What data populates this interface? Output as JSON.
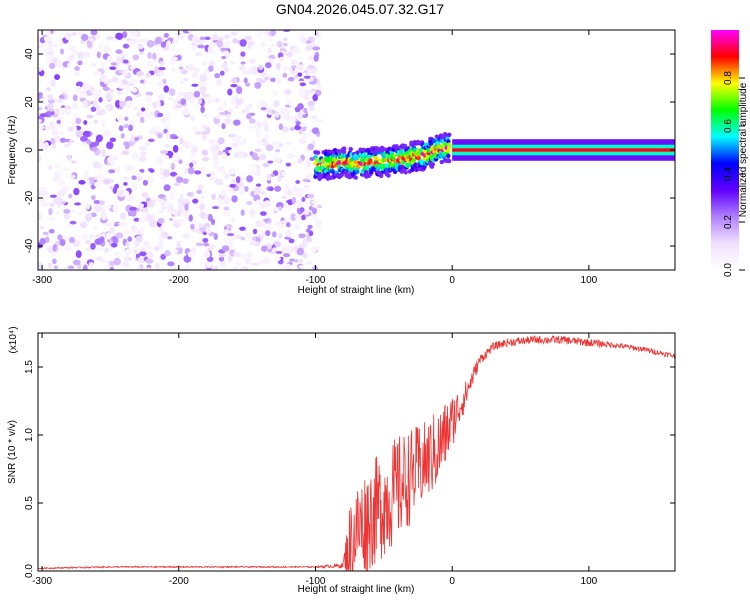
{
  "title": "GN04.2026.045.07.32.G17",
  "chart_data": [
    {
      "type": "heatmap",
      "xlabel": "Height of straight line (km)",
      "ylabel": "Frequency (Hz)",
      "xlim": [
        -303,
        163
      ],
      "ylim": [
        -50,
        50
      ],
      "xticks": [
        -300,
        -200,
        -100,
        0,
        100
      ],
      "yticks": [
        -40,
        -20,
        0,
        20,
        40
      ],
      "colorbar": {
        "label": "Normalized spectral amplitude",
        "range": [
          0,
          1
        ],
        "ticks": [
          0.0,
          0.2,
          0.4,
          0.6,
          0.8
        ],
        "tick_labels": [
          "0.0",
          "0.2",
          "0.4",
          "0.6",
          "0.8"
        ],
        "colors": [
          "#ffffff",
          "#f0e0ff",
          "#b080ff",
          "#6000ff",
          "#0000ff",
          "#00ffff",
          "#00ff00",
          "#ffff00",
          "#ff0000",
          "#ff00ff"
        ]
      },
      "regions": [
        {
          "from": -303,
          "to": -97,
          "description": "scattered noise, amplitude about 0.05-0.25, full frequency band"
        },
        {
          "from": -100,
          "to": -2,
          "description": "signal near 0 Hz drifting from about -7 Hz up to about 2 Hz"
        },
        {
          "from": 0,
          "to": 163,
          "description": "steady signal at 0 Hz, amplitude about 0.9"
        }
      ],
      "ridge": {
        "x": [
          -100,
          -90,
          -80,
          -70,
          -60,
          -50,
          -40,
          -30,
          -20,
          -10,
          -2,
          0,
          50,
          100,
          163
        ],
        "y": [
          -6,
          -6,
          -5,
          -6,
          -5,
          -5,
          -4,
          -3,
          -2,
          0,
          1,
          0,
          0,
          0,
          0
        ]
      }
    },
    {
      "type": "line",
      "xlabel": "Height of straight line (km)",
      "ylabel": "SNR (10 * v/v)",
      "y_multiplier": "(x10⁴)",
      "xlim": [
        -303,
        163
      ],
      "ylim": [
        0,
        1.75
      ],
      "xticks": [
        -300,
        -200,
        -100,
        0,
        100
      ],
      "yticks": [
        0.0,
        0.5,
        1.0,
        1.5
      ],
      "ytick_labels": [
        "0.0",
        "0.5",
        "1.0",
        "1.5"
      ],
      "color": "#ee3333",
      "series": [
        {
          "x": [
            -303,
            -250,
            -200,
            -150,
            -100,
            -80,
            -75,
            -70,
            -60,
            -50,
            -40,
            -30,
            -20,
            -10,
            0,
            10,
            20,
            30,
            40,
            60,
            80,
            100,
            120,
            140,
            163
          ],
          "y": [
            0.02,
            0.03,
            0.03,
            0.03,
            0.03,
            0.04,
            0.2,
            0.3,
            0.4,
            0.5,
            0.6,
            0.7,
            0.8,
            0.9,
            1.1,
            1.3,
            1.55,
            1.65,
            1.68,
            1.7,
            1.7,
            1.68,
            1.66,
            1.63,
            1.58
          ],
          "noise_amplitude": [
            0.005,
            0.005,
            0.005,
            0.005,
            0.005,
            0.02,
            0.3,
            0.35,
            0.4,
            0.4,
            0.4,
            0.35,
            0.3,
            0.3,
            0.2,
            0.1,
            0.04,
            0.03,
            0.03,
            0.03,
            0.03,
            0.03,
            0.02,
            0.02,
            0.02
          ]
        }
      ]
    }
  ]
}
